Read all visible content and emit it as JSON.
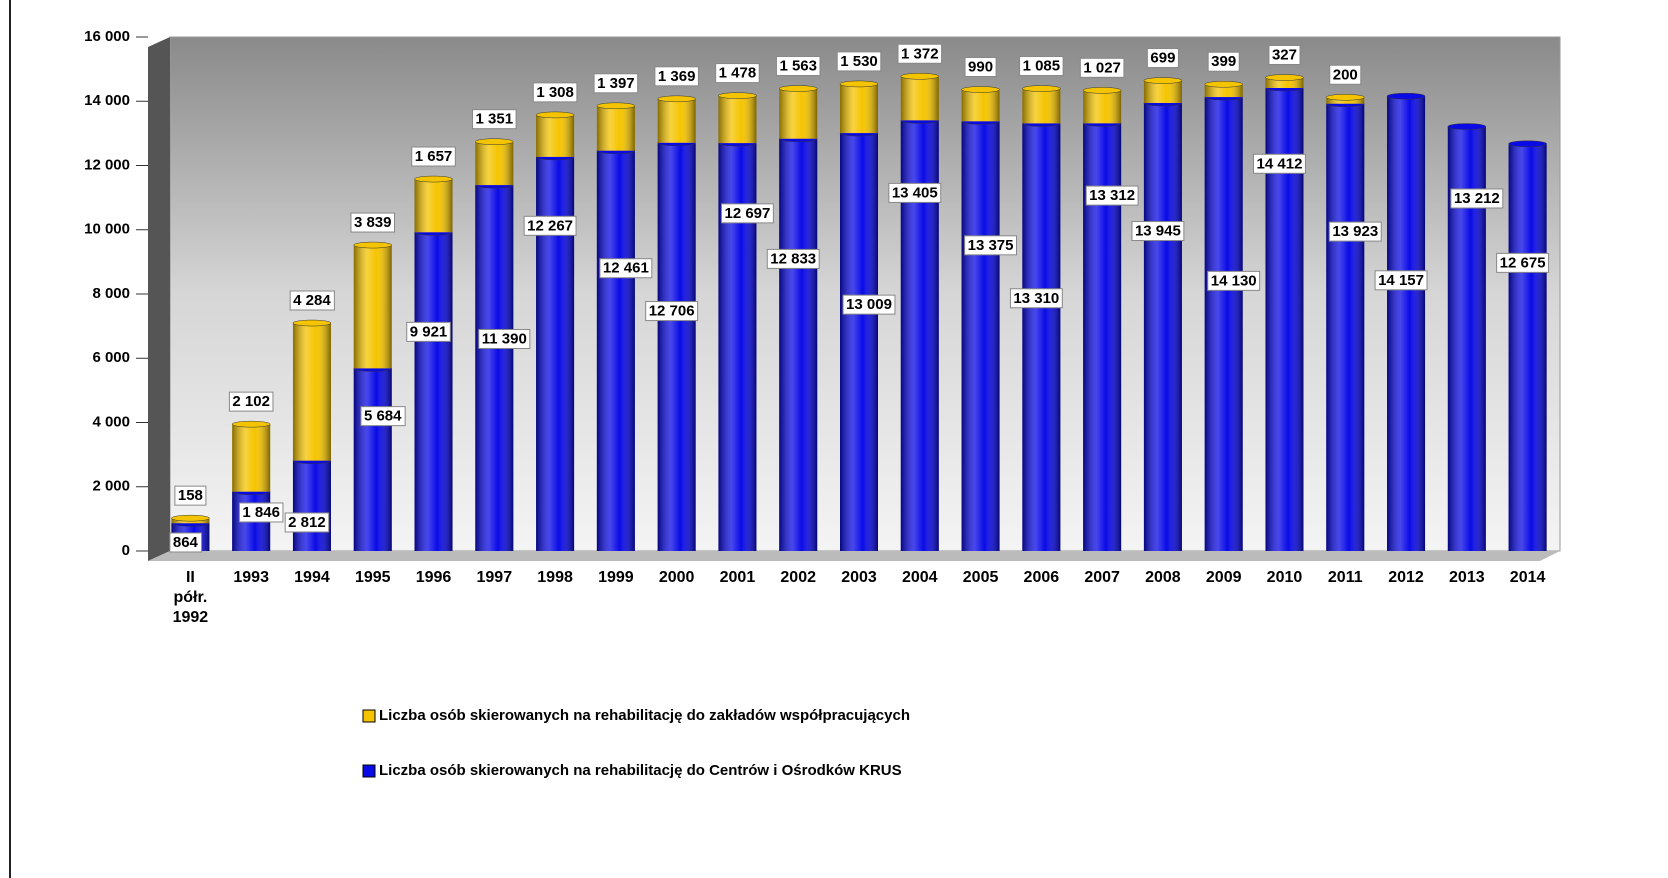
{
  "chart_data": {
    "type": "stacked_bar",
    "categories": [
      "II\npółr.\n1992",
      "1993",
      "1994",
      "1995",
      "1996",
      "1997",
      "1998",
      "1999",
      "2000",
      "2001",
      "2002",
      "2003",
      "2004",
      "2005",
      "2006",
      "2007",
      "2008",
      "2009",
      "2010",
      "2011",
      "2012",
      "2013",
      "2014"
    ],
    "series": [
      {
        "name": "Liczba osób skierowanych na rehabilitację do zakładów współpracujących",
        "color": "#f5c400",
        "values": [
          158,
          2102,
          4284,
          3839,
          1657,
          1351,
          1308,
          1397,
          1369,
          1478,
          1563,
          1530,
          1372,
          990,
          1085,
          1027,
          699,
          399,
          327,
          200,
          null,
          null,
          null
        ],
        "value_labels": [
          "158",
          "2 102",
          "4 284",
          "3 839",
          "1 657",
          "1 351",
          "1 308",
          "1 397",
          "1 369",
          "1 478",
          "1 563",
          "1 530",
          "1 372",
          "990",
          "1 085",
          "1 027",
          "699",
          "399",
          "327",
          "200",
          null,
          null,
          null
        ]
      },
      {
        "name": "Liczba osób skierowanych na rehabilitację do Centrów i Ośrodków KRUS",
        "color": "#0a0ae6",
        "values": [
          864,
          1846,
          2812,
          5684,
          9921,
          11390,
          12267,
          12461,
          12706,
          12697,
          12833,
          13009,
          13405,
          13375,
          13310,
          13312,
          13945,
          14130,
          14412,
          13923,
          14157,
          13212,
          12675
        ],
        "value_labels": [
          "864",
          "1 846",
          "2 812",
          "5 684",
          "9 921",
          "11 390",
          "12 267",
          "12 461",
          "12 706",
          "12 697",
          "12 833",
          "13 009",
          "13 405",
          "13 375",
          "13 310",
          "13 312",
          "13 945",
          "14 130",
          "14 412",
          "13 923",
          "14 157",
          "13 212",
          "12 675"
        ]
      }
    ],
    "ylim": [
      0,
      16000
    ],
    "yticks": [
      0,
      {
        "value": 2000,
        "label": "2 000"
      },
      {
        "value": 4000,
        "label": "4 000"
      },
      {
        "value": 6000,
        "label": "6 000"
      },
      {
        "value": 8000,
        "label": "8 000"
      },
      {
        "value": 10000,
        "label": "10 000"
      },
      {
        "value": 12000,
        "label": "12 000"
      },
      {
        "value": 14000,
        "label": "14 000"
      },
      {
        "value": 16000,
        "label": "16 000"
      }
    ],
    "grid": false
  }
}
